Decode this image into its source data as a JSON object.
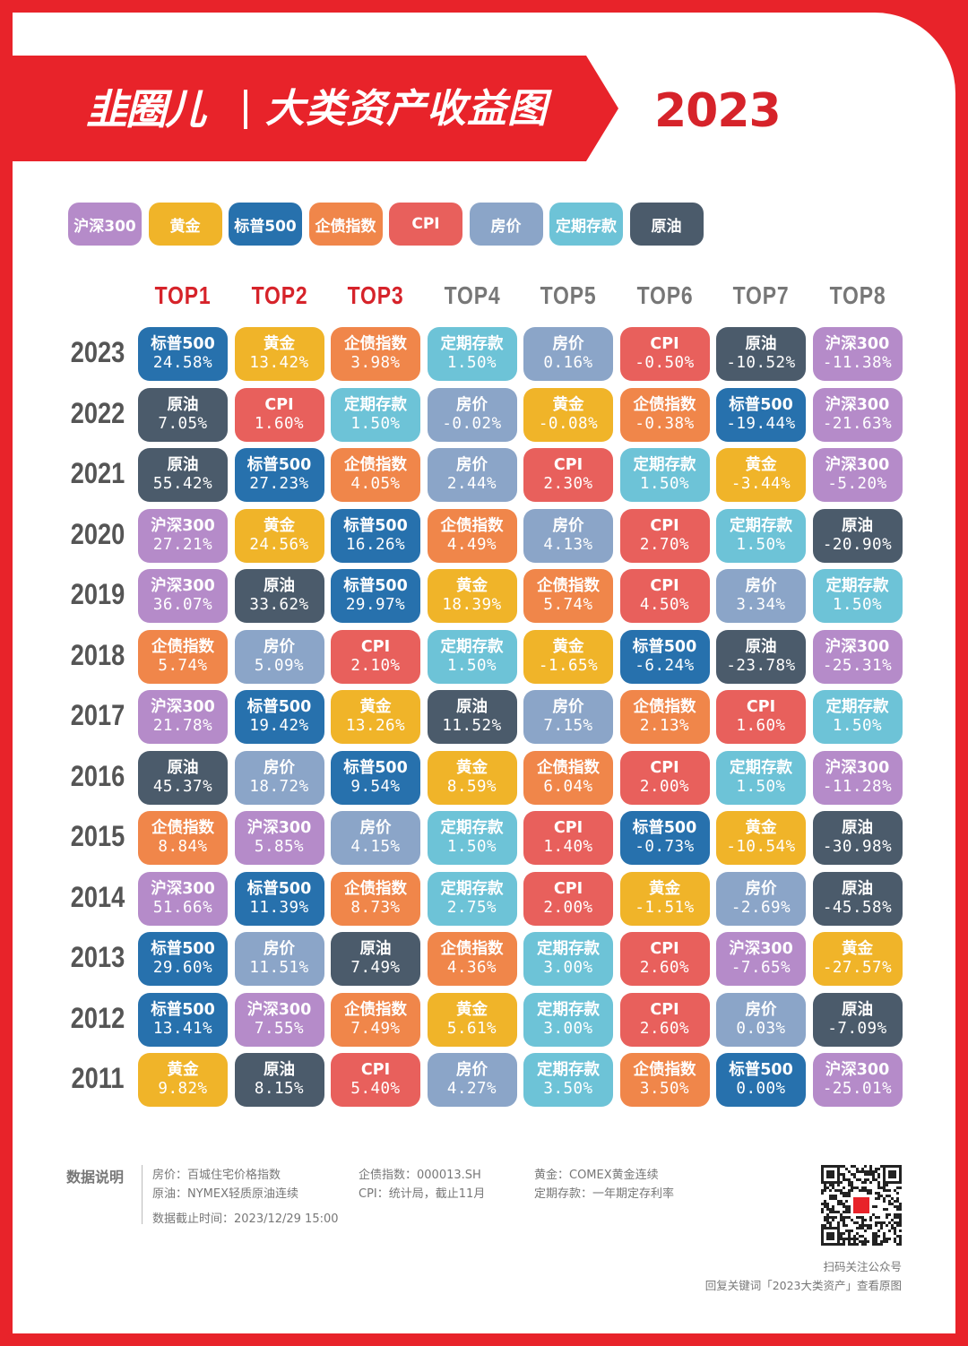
{
  "header": {
    "logo": "韭圈儿",
    "title": "大类资产收益图",
    "year": "2023"
  },
  "colors": {
    "brand_red": "#e8232a",
    "沪深300": "#b58bc9",
    "黄金": "#f0b429",
    "标普500": "#2771ad",
    "企债指数": "#f0864a",
    "CPI": "#e8605c",
    "房价": "#8ba5c8",
    "定期存款": "#6dc3d7",
    "原油": "#4b5b6b"
  },
  "legend": [
    "沪深300",
    "黄金",
    "标普500",
    "企债指数",
    "CPI",
    "房价",
    "定期存款",
    "原油"
  ],
  "chart_data": {
    "type": "table",
    "columns": [
      "TOP1",
      "TOP2",
      "TOP3",
      "TOP4",
      "TOP5",
      "TOP6",
      "TOP7",
      "TOP8"
    ],
    "rows": [
      {
        "year": "2023",
        "cells": [
          [
            "标普500",
            "24.58%"
          ],
          [
            "黄金",
            "13.42%"
          ],
          [
            "企债指数",
            "3.98%"
          ],
          [
            "定期存款",
            "1.50%"
          ],
          [
            "房价",
            "0.16%"
          ],
          [
            "CPI",
            "-0.50%"
          ],
          [
            "原油",
            "-10.52%"
          ],
          [
            "沪深300",
            "-11.38%"
          ]
        ]
      },
      {
        "year": "2022",
        "cells": [
          [
            "原油",
            "7.05%"
          ],
          [
            "CPI",
            "1.60%"
          ],
          [
            "定期存款",
            "1.50%"
          ],
          [
            "房价",
            "-0.02%"
          ],
          [
            "黄金",
            "-0.08%"
          ],
          [
            "企债指数",
            "-0.38%"
          ],
          [
            "标普500",
            "-19.44%"
          ],
          [
            "沪深300",
            "-21.63%"
          ]
        ]
      },
      {
        "year": "2021",
        "cells": [
          [
            "原油",
            "55.42%"
          ],
          [
            "标普500",
            "27.23%"
          ],
          [
            "企债指数",
            "4.05%"
          ],
          [
            "房价",
            "2.44%"
          ],
          [
            "CPI",
            "2.30%"
          ],
          [
            "定期存款",
            "1.50%"
          ],
          [
            "黄金",
            "-3.44%"
          ],
          [
            "沪深300",
            "-5.20%"
          ]
        ]
      },
      {
        "year": "2020",
        "cells": [
          [
            "沪深300",
            "27.21%"
          ],
          [
            "黄金",
            "24.56%"
          ],
          [
            "标普500",
            "16.26%"
          ],
          [
            "企债指数",
            "4.49%"
          ],
          [
            "房价",
            "4.13%"
          ],
          [
            "CPI",
            "2.70%"
          ],
          [
            "定期存款",
            "1.50%"
          ],
          [
            "原油",
            "-20.90%"
          ]
        ]
      },
      {
        "year": "2019",
        "cells": [
          [
            "沪深300",
            "36.07%"
          ],
          [
            "原油",
            "33.62%"
          ],
          [
            "标普500",
            "29.97%"
          ],
          [
            "黄金",
            "18.39%"
          ],
          [
            "企债指数",
            "5.74%"
          ],
          [
            "CPI",
            "4.50%"
          ],
          [
            "房价",
            "3.34%"
          ],
          [
            "定期存款",
            "1.50%"
          ]
        ]
      },
      {
        "year": "2018",
        "cells": [
          [
            "企债指数",
            "5.74%"
          ],
          [
            "房价",
            "5.09%"
          ],
          [
            "CPI",
            "2.10%"
          ],
          [
            "定期存款",
            "1.50%"
          ],
          [
            "黄金",
            "-1.65%"
          ],
          [
            "标普500",
            "-6.24%"
          ],
          [
            "原油",
            "-23.78%"
          ],
          [
            "沪深300",
            "-25.31%"
          ]
        ]
      },
      {
        "year": "2017",
        "cells": [
          [
            "沪深300",
            "21.78%"
          ],
          [
            "标普500",
            "19.42%"
          ],
          [
            "黄金",
            "13.26%"
          ],
          [
            "原油",
            "11.52%"
          ],
          [
            "房价",
            "7.15%"
          ],
          [
            "企债指数",
            "2.13%"
          ],
          [
            "CPI",
            "1.60%"
          ],
          [
            "定期存款",
            "1.50%"
          ]
        ]
      },
      {
        "year": "2016",
        "cells": [
          [
            "原油",
            "45.37%"
          ],
          [
            "房价",
            "18.72%"
          ],
          [
            "标普500",
            "9.54%"
          ],
          [
            "黄金",
            "8.59%"
          ],
          [
            "企债指数",
            "6.04%"
          ],
          [
            "CPI",
            "2.00%"
          ],
          [
            "定期存款",
            "1.50%"
          ],
          [
            "沪深300",
            "-11.28%"
          ]
        ]
      },
      {
        "year": "2015",
        "cells": [
          [
            "企债指数",
            "8.84%"
          ],
          [
            "沪深300",
            "5.85%"
          ],
          [
            "房价",
            "4.15%"
          ],
          [
            "定期存款",
            "1.50%"
          ],
          [
            "CPI",
            "1.40%"
          ],
          [
            "标普500",
            "-0.73%"
          ],
          [
            "黄金",
            "-10.54%"
          ],
          [
            "原油",
            "-30.98%"
          ]
        ]
      },
      {
        "year": "2014",
        "cells": [
          [
            "沪深300",
            "51.66%"
          ],
          [
            "标普500",
            "11.39%"
          ],
          [
            "企债指数",
            "8.73%"
          ],
          [
            "定期存款",
            "2.75%"
          ],
          [
            "CPI",
            "2.00%"
          ],
          [
            "黄金",
            "-1.51%"
          ],
          [
            "房价",
            "-2.69%"
          ],
          [
            "原油",
            "-45.58%"
          ]
        ]
      },
      {
        "year": "2013",
        "cells": [
          [
            "标普500",
            "29.60%"
          ],
          [
            "房价",
            "11.51%"
          ],
          [
            "原油",
            "7.49%"
          ],
          [
            "企债指数",
            "4.36%"
          ],
          [
            "定期存款",
            "3.00%"
          ],
          [
            "CPI",
            "2.60%"
          ],
          [
            "沪深300",
            "-7.65%"
          ],
          [
            "黄金",
            "-27.57%"
          ]
        ]
      },
      {
        "year": "2012",
        "cells": [
          [
            "标普500",
            "13.41%"
          ],
          [
            "沪深300",
            "7.55%"
          ],
          [
            "企债指数",
            "7.49%"
          ],
          [
            "黄金",
            "5.61%"
          ],
          [
            "定期存款",
            "3.00%"
          ],
          [
            "CPI",
            "2.60%"
          ],
          [
            "房价",
            "0.03%"
          ],
          [
            "原油",
            "-7.09%"
          ]
        ]
      },
      {
        "year": "2011",
        "cells": [
          [
            "黄金",
            "9.82%"
          ],
          [
            "原油",
            "8.15%"
          ],
          [
            "CPI",
            "5.40%"
          ],
          [
            "房价",
            "4.27%"
          ],
          [
            "定期存款",
            "3.50%"
          ],
          [
            "企债指数",
            "3.50%"
          ],
          [
            "标普500",
            "0.00%"
          ],
          [
            "沪深300",
            "-25.01%"
          ]
        ]
      }
    ]
  },
  "column_head_colors": [
    "#d6232a",
    "#d6232a",
    "#d6232a",
    "#777777",
    "#777777",
    "#777777",
    "#777777",
    "#777777"
  ],
  "footer": {
    "notes_title": "数据说明",
    "note_house": "房价：百城住宅价格指数",
    "note_oil": "原油：NYMEX轻质原油连续",
    "note_bond": "企债指数：000013.SH",
    "note_cpi": "CPI：统计局，截止11月",
    "note_gold": "黄金：COMEX黄金连续",
    "note_deposit": "定期存款：一年期定存利率",
    "cutoff": "数据截止时间：2023/12/29 15:00",
    "qr_caption": "扫码关注公众号",
    "reply_hint": "回复关键词「2023大类资产」查看原图"
  }
}
